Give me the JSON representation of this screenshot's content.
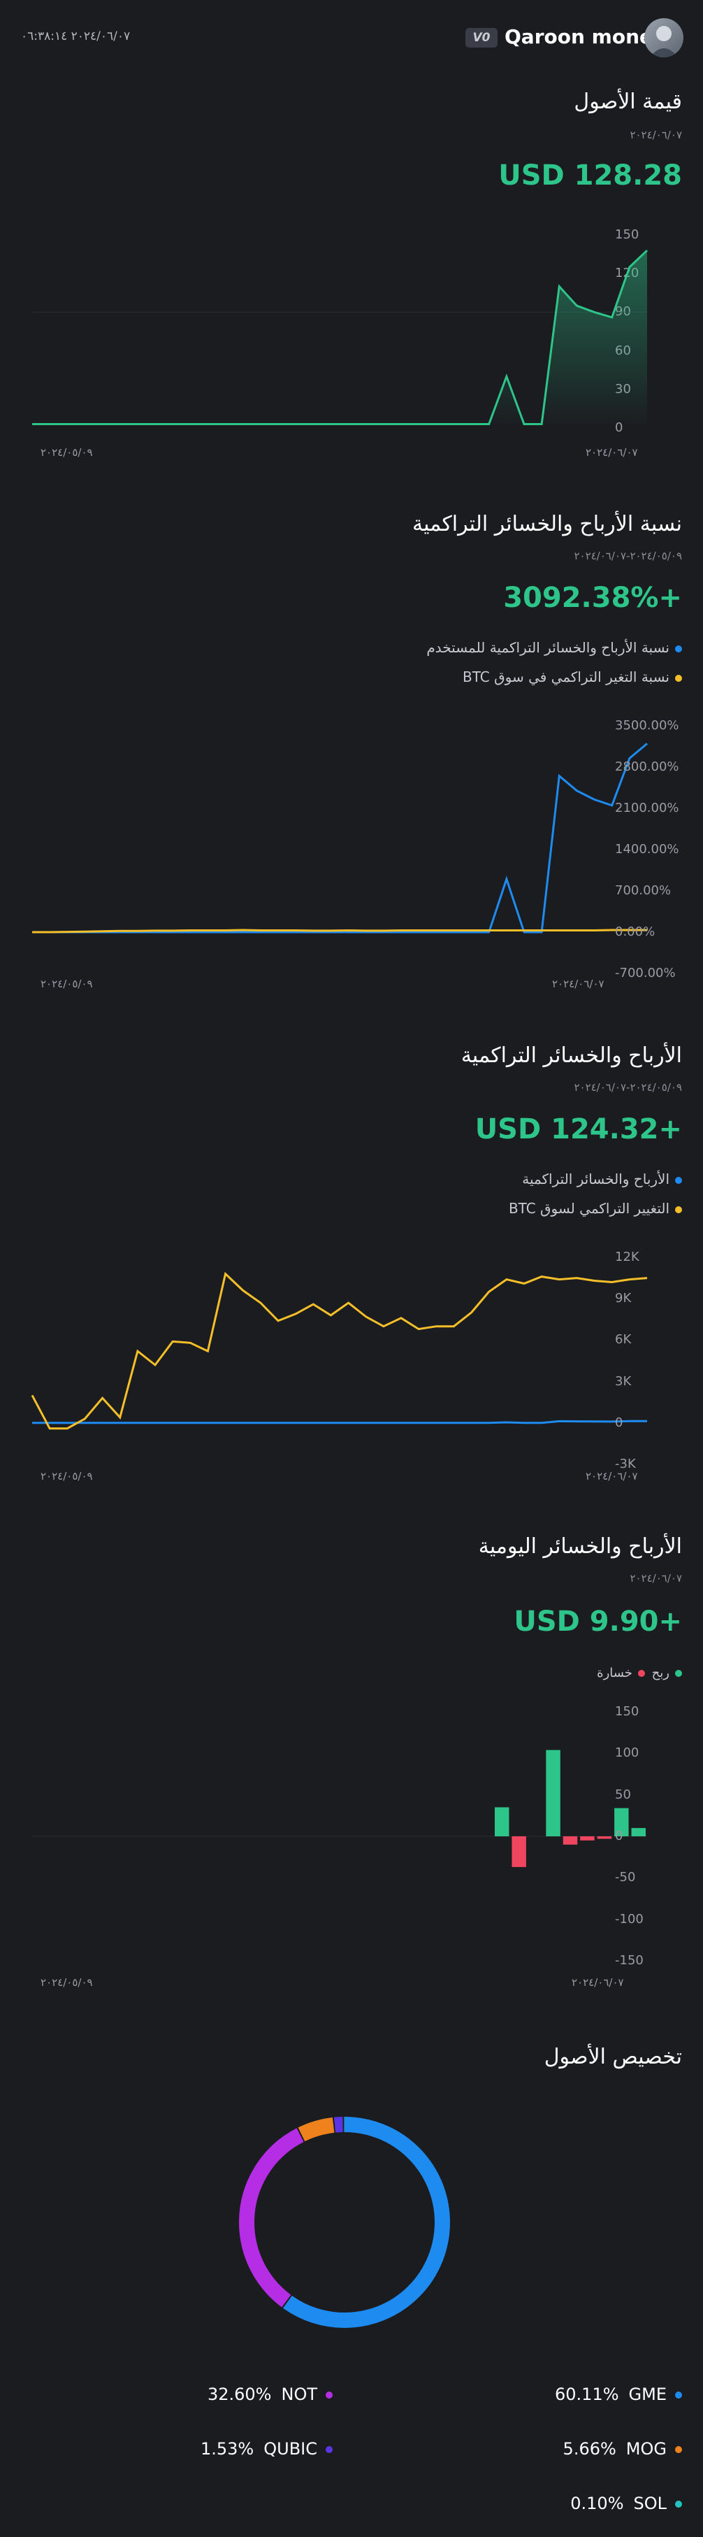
{
  "header": {
    "datetime": "٢٠٢٤/٠٦/٠٧ ٠٦:٣٨:١٤",
    "version_badge": "V0",
    "app_name": "Qaroon money"
  },
  "colors": {
    "background": "#1b1c20",
    "green": "#2ec58a",
    "blue": "#1e8bf0",
    "yellow": "#f5bf2a",
    "red": "#f0455f"
  },
  "asset_value": {
    "title": "قيمة الأصول",
    "date": "٢٠٢٤/٠٦/٠٧",
    "value": "USD 128.28",
    "x_start": "٢٠٢٤/٠٥/٠٩",
    "x_end": "٢٠٢٤/٠٦/٠٧",
    "chart_data": {
      "type": "area",
      "series": [
        {
          "values": [
            3,
            3,
            3,
            3,
            3,
            3,
            3,
            3,
            3,
            3,
            3,
            3,
            3,
            3,
            3,
            3,
            3,
            3,
            3,
            3,
            3,
            3,
            3,
            3,
            3,
            3,
            3,
            40,
            3,
            3,
            110,
            95,
            90,
            86,
            125,
            138
          ]
        }
      ],
      "ylim": [
        0,
        150
      ],
      "y_ticks": [
        "150",
        "120",
        "90",
        "60",
        "30",
        "0"
      ],
      "grid": true
    }
  },
  "pnl_ratio": {
    "title": "نسبة الأرباح والخسائر التراكمية",
    "date": "٢٠٢٤/٠٥/٠٩-٢٠٢٤/٠٦/٠٧",
    "value": "+3092.38%",
    "legend": [
      "نسبة الأرباح والخسائر التراكمية للمستخدم",
      "نسبة التغير التراكمي في سوق BTC"
    ],
    "x_start": "٢٠٢٤/٠٥/٠٩",
    "x_end": "٢٠٢٤/٠٦/٠٧",
    "chart_data": {
      "type": "line",
      "series": [
        {
          "name": "نسبة الأرباح والخسائر التراكمية للمستخدم",
          "values": [
            0,
            0,
            0,
            0,
            0,
            0,
            0,
            0,
            0,
            0,
            0,
            0,
            0,
            0,
            0,
            0,
            0,
            0,
            0,
            0,
            0,
            0,
            0,
            0,
            0,
            0,
            0,
            900,
            0,
            0,
            2650,
            2400,
            2250,
            2150,
            2950,
            3200
          ]
        },
        {
          "name": "نسبة التغير التراكمي في سوق BTC",
          "values": [
            0,
            0,
            5,
            10,
            15,
            20,
            20,
            25,
            25,
            30,
            30,
            30,
            35,
            30,
            30,
            30,
            25,
            25,
            30,
            25,
            25,
            30,
            30,
            30,
            30,
            30,
            30,
            30,
            30,
            30,
            30,
            30,
            30,
            35,
            35,
            35
          ]
        }
      ],
      "ylim": [
        -700,
        3500
      ],
      "y_ticks": [
        "3500.00%",
        "2800.00%",
        "2100.00%",
        "1400.00%",
        "700.00%",
        "0.00%",
        "-700.00%"
      ]
    }
  },
  "pnl_cumulative": {
    "title": "الأرباح والخسائر التراكمية",
    "date": "٢٠٢٤/٠٥/٠٩-٢٠٢٤/٠٦/٠٧",
    "value": "+USD 124.32",
    "legend": [
      "الأرباح والخسائر التراكمية",
      "التغيير التراكمي لسوق BTC"
    ],
    "x_start": "٢٠٢٤/٠٥/٠٩",
    "x_end": "٢٠٢٤/٠٦/٠٧",
    "chart_data": {
      "type": "line",
      "series": [
        {
          "name": "الأرباح والخسائر التراكمية",
          "values": [
            0,
            0,
            0,
            0,
            0,
            0,
            0,
            0,
            0,
            0,
            0,
            0,
            0,
            0,
            0,
            0,
            0,
            0,
            0,
            0,
            0,
            0,
            0,
            0,
            0,
            0,
            0,
            40,
            0,
            0,
            120,
            110,
            100,
            95,
            125,
            130
          ]
        },
        {
          "name": "التغيير التراكمي لسوق BTC",
          "values": [
            2000,
            -400,
            -400,
            300,
            1800,
            400,
            5200,
            4200,
            5900,
            5800,
            5200,
            10800,
            9600,
            8700,
            7400,
            7900,
            8600,
            7800,
            8700,
            7700,
            7000,
            7600,
            6800,
            7000,
            7000,
            8000,
            9500,
            10400,
            10100,
            10600,
            10400,
            10500,
            10300,
            10200,
            10400,
            10500
          ]
        }
      ],
      "ylim": [
        -3000,
        12000
      ],
      "y_ticks": [
        "12K",
        "9K",
        "6K",
        "3K",
        "0",
        "-3K"
      ]
    }
  },
  "pnl_daily": {
    "title": "الأرباح والخسائر اليومية",
    "date": "٢٠٢٤/٠٦/٠٧",
    "value": "+USD 9.90",
    "legend_profit": "ربح",
    "legend_loss": "خسارة",
    "x_start": "٢٠٢٤/٠٥/٠٩",
    "x_end": "٢٠٢٤/٠٦/٠٧",
    "chart_data": {
      "type": "bar",
      "values": [
        0,
        0,
        0,
        0,
        0,
        0,
        0,
        0,
        0,
        0,
        0,
        0,
        0,
        0,
        0,
        0,
        0,
        0,
        0,
        0,
        0,
        0,
        0,
        0,
        0,
        0,
        0,
        35,
        -37,
        0,
        104,
        -10,
        -5,
        -3,
        34,
        10
      ],
      "ylim": [
        -150,
        150
      ],
      "y_ticks": [
        "150",
        "100",
        "50",
        "0",
        "-50",
        "-100",
        "-150"
      ]
    }
  },
  "allocation": {
    "title": "تخصيص الأصول",
    "chart_data": {
      "type": "pie",
      "slices": [
        {
          "name": "GME",
          "percent": 60.11,
          "label": "60.11%",
          "color": "#1e8bf0"
        },
        {
          "name": "NOT",
          "percent": 32.6,
          "label": "32.60%",
          "color": "#b52ee6"
        },
        {
          "name": "MOG",
          "percent": 5.66,
          "label": "5.66%",
          "color": "#f0821e"
        },
        {
          "name": "QUBIC",
          "percent": 1.53,
          "label": "1.53%",
          "color": "#5b34e6"
        },
        {
          "name": "SOL",
          "percent": 0.1,
          "label": "0.10%",
          "color": "#22c4c0"
        }
      ]
    }
  }
}
